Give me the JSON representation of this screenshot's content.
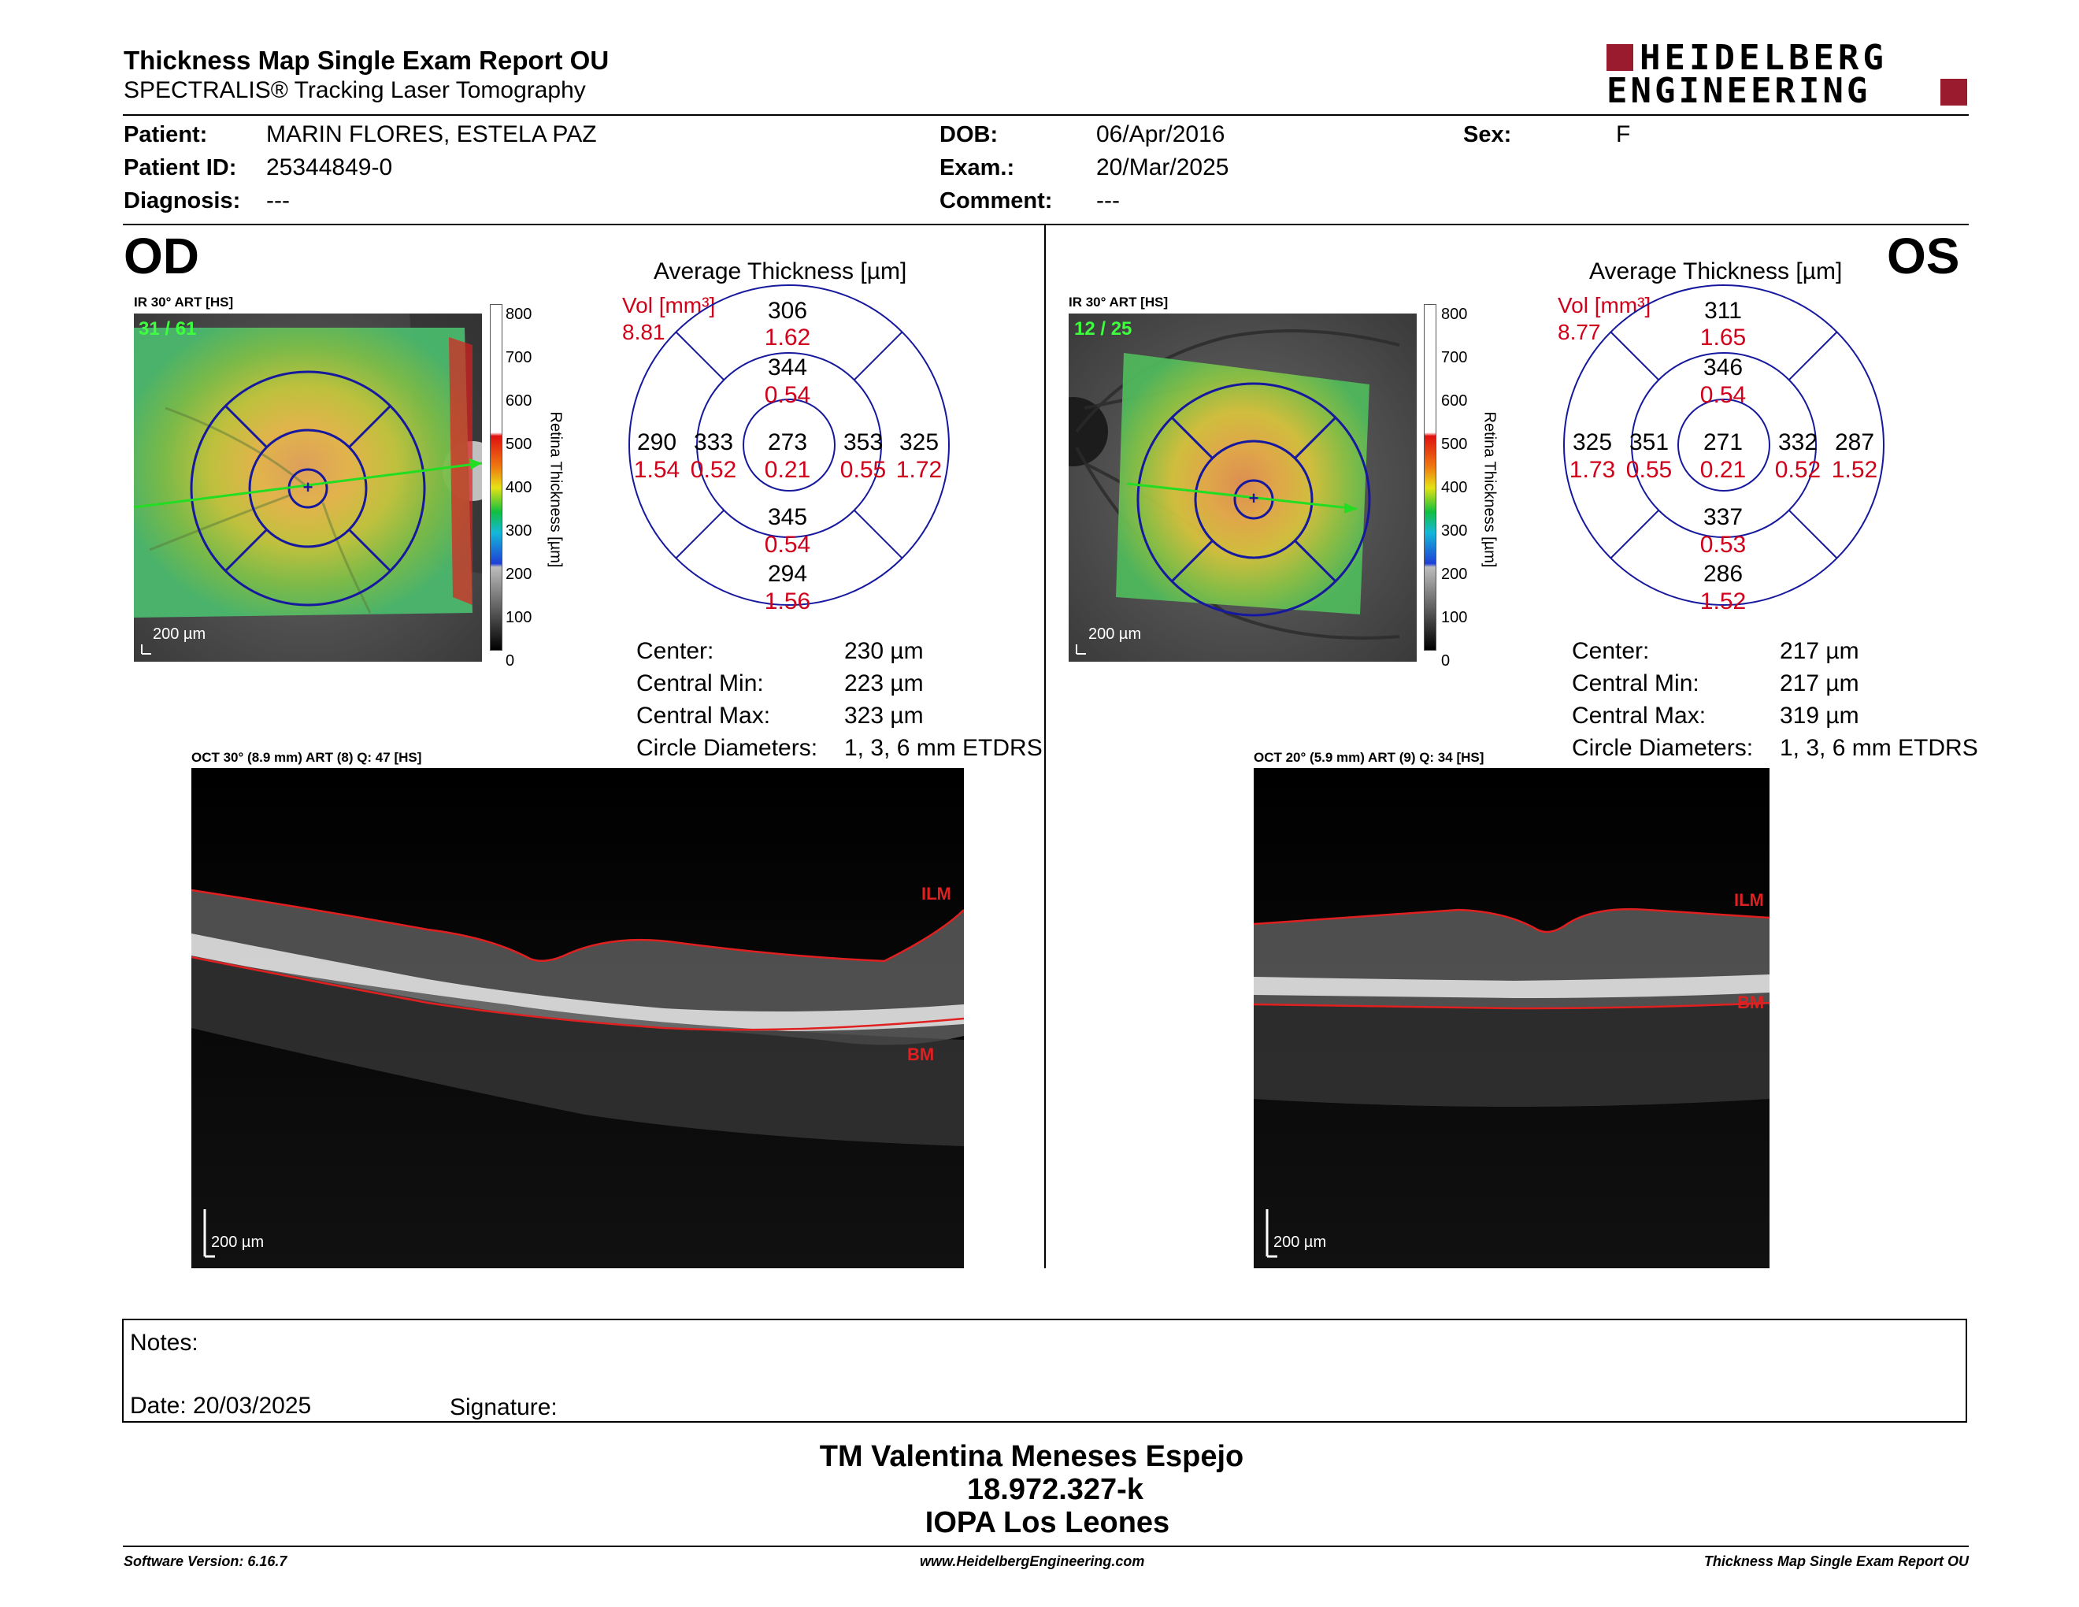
{
  "header": {
    "title": "Thickness Map Single Exam Report OU",
    "subtitle": "SPECTRALIS® Tracking Laser Tomography",
    "brand_line1": "HEIDELBERG",
    "brand_line2": "ENGINEERING",
    "brand_color": "#9b1b2e"
  },
  "patient": {
    "patient_label": "Patient:",
    "patient_value": "MARIN FLORES, ESTELA PAZ",
    "id_label": "Patient ID:",
    "id_value": "25344849-0",
    "diagnosis_label": "Diagnosis:",
    "diagnosis_value": "---",
    "dob_label": "DOB:",
    "dob_value": "06/Apr/2016",
    "exam_label": "Exam.:",
    "exam_value": "20/Mar/2025",
    "comment_label": "Comment:",
    "comment_value": "---",
    "sex_label": "Sex:",
    "sex_value": "F"
  },
  "od": {
    "eye": "OD",
    "ir_label": "IR 30° ART [HS]",
    "frame": "31 / 61",
    "scale": "200 µm",
    "colorbar_ticks": [
      "800",
      "700",
      "600",
      "500",
      "400",
      "300",
      "200",
      "100",
      "0"
    ],
    "colorbar_title": "Retina Thickness [µm]",
    "avg_title": "Average Thickness [µm]",
    "vol_label": "Vol [mm³]",
    "vol_total": "8.81",
    "sectors": {
      "center": {
        "t": "273",
        "v": "0.21"
      },
      "inner_sup": {
        "t": "344",
        "v": "0.54"
      },
      "inner_inf": {
        "t": "345",
        "v": "0.54"
      },
      "inner_left": {
        "t": "333",
        "v": "0.52"
      },
      "inner_right": {
        "t": "353",
        "v": "0.55"
      },
      "outer_sup": {
        "t": "306",
        "v": "1.62"
      },
      "outer_inf": {
        "t": "294",
        "v": "1.56"
      },
      "outer_left": {
        "t": "290",
        "v": "1.54"
      },
      "outer_right": {
        "t": "325",
        "v": "1.72"
      }
    },
    "stats": [
      {
        "label": "Center:",
        "value": "230 µm"
      },
      {
        "label": "Central Min:",
        "value": "223 µm"
      },
      {
        "label": "Central Max:",
        "value": "323 µm"
      },
      {
        "label": "Circle Diameters:",
        "value": "1, 3, 6 mm ETDRS"
      }
    ],
    "oct_label": "OCT 30° (8.9 mm) ART (8) Q: 47 [HS]",
    "ilm": "ILM",
    "bm": "BM",
    "oct_scale": "200 µm"
  },
  "os": {
    "eye": "OS",
    "ir_label": "IR 30° ART [HS]",
    "frame": "12 / 25",
    "scale": "200 µm",
    "colorbar_ticks": [
      "800",
      "700",
      "600",
      "500",
      "400",
      "300",
      "200",
      "100",
      "0"
    ],
    "colorbar_title": "Retina Thickness [µm]",
    "avg_title": "Average Thickness [µm]",
    "vol_label": "Vol [mm³]",
    "vol_total": "8.77",
    "sectors": {
      "center": {
        "t": "271",
        "v": "0.21"
      },
      "inner_sup": {
        "t": "346",
        "v": "0.54"
      },
      "inner_inf": {
        "t": "337",
        "v": "0.53"
      },
      "inner_left": {
        "t": "351",
        "v": "0.55"
      },
      "inner_right": {
        "t": "332",
        "v": "0.52"
      },
      "outer_sup": {
        "t": "311",
        "v": "1.65"
      },
      "outer_inf": {
        "t": "286",
        "v": "1.52"
      },
      "outer_left": {
        "t": "325",
        "v": "1.73"
      },
      "outer_right": {
        "t": "287",
        "v": "1.52"
      }
    },
    "stats": [
      {
        "label": "Center:",
        "value": "217 µm"
      },
      {
        "label": "Central Min:",
        "value": "217 µm"
      },
      {
        "label": "Central Max:",
        "value": "319 µm"
      },
      {
        "label": "Circle Diameters:",
        "value": "1, 3, 6 mm ETDRS"
      }
    ],
    "oct_label": "OCT 20° (5.9 mm) ART (9) Q: 34 [HS]",
    "ilm": "ILM",
    "bm": "BM",
    "oct_scale": "200 µm"
  },
  "notes": {
    "notes_label": "Notes:",
    "date_label": "Date: 20/03/2025",
    "signature_label": "Signature:"
  },
  "signature": {
    "name": "TM Valentina Meneses Espejo",
    "rut": "18.972.327-k",
    "institution": "IOPA Los Leones"
  },
  "footer": {
    "software": "Software Version: 6.16.7",
    "website": "www.HeidelbergEngineering.com",
    "report": "Thickness Map Single Exam Report OU"
  }
}
